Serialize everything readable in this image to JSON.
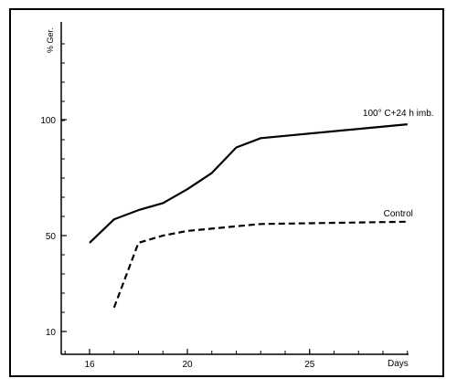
{
  "chart_data": {
    "type": "line",
    "ylabel": "% Ger.",
    "xlabel": "Days",
    "x_ticks": [
      16,
      20,
      25
    ],
    "y_ticks": [
      10,
      50,
      100
    ],
    "xlim": [
      15,
      29.2
    ],
    "y_axis_note": "nonlinear vertical scale; tick 10 sits low, 50 mid, 100 upper",
    "series": [
      {
        "name": "100° C+24 h imb.",
        "style": "solid",
        "points": [
          [
            16,
            47
          ],
          [
            17,
            57
          ],
          [
            18,
            61
          ],
          [
            19,
            64
          ],
          [
            20,
            70
          ],
          [
            21,
            77
          ],
          [
            22,
            88
          ],
          [
            23,
            92
          ],
          [
            29,
            98
          ]
        ]
      },
      {
        "name": "Control",
        "style": "dashed",
        "points": [
          [
            17,
            20
          ],
          [
            18,
            47
          ],
          [
            19,
            50
          ],
          [
            20,
            52
          ],
          [
            21,
            53
          ],
          [
            22,
            54
          ],
          [
            23,
            55
          ],
          [
            29,
            56
          ]
        ]
      }
    ]
  }
}
